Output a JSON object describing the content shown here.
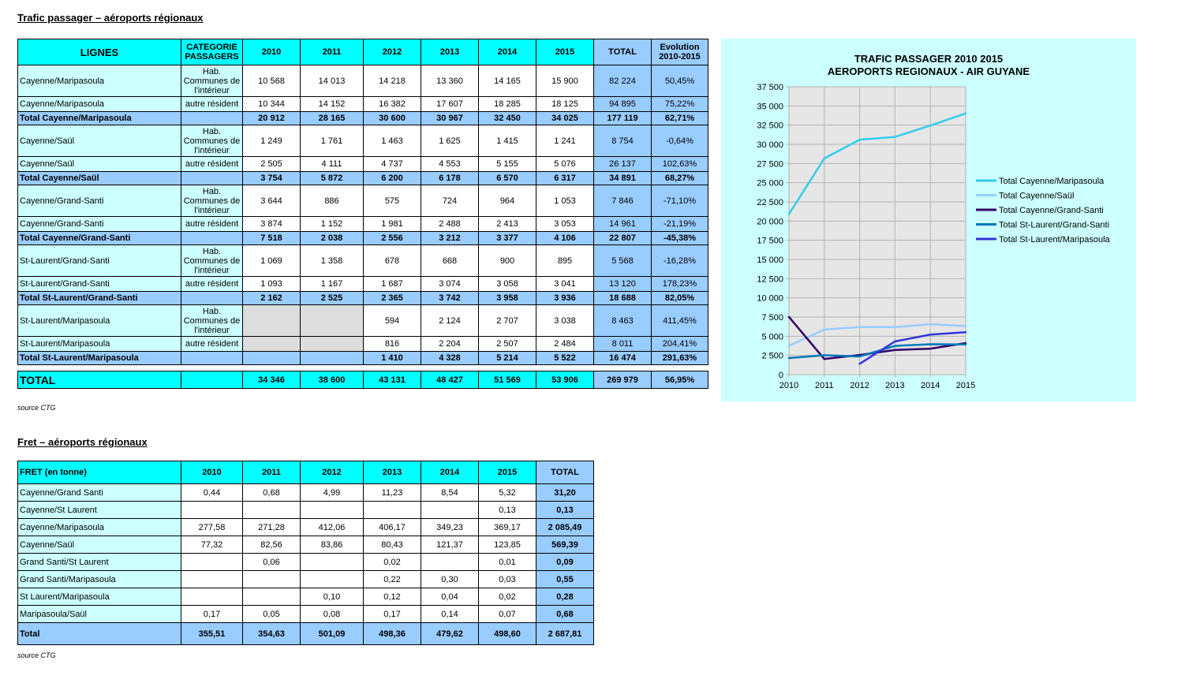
{
  "passenger": {
    "heading": "Trafic passager – aéroports régionaux",
    "headers": [
      "LIGNES",
      "CATEGORIE PASSAGERS",
      "2010",
      "2011",
      "2012",
      "2013",
      "2014",
      "2015",
      "TOTAL",
      "Evolution 2010-2015"
    ],
    "rows": [
      {
        "kind": "data",
        "cells": [
          "Cayenne/Maripasoula",
          "Hab. Communes de l'intérieur",
          "10 568",
          "14 013",
          "14 218",
          "13 360",
          "14 165",
          "15 900",
          "82 224",
          "50,45%"
        ]
      },
      {
        "kind": "data",
        "cells": [
          "Cayenne/Maripasoula",
          "autre résident",
          "10 344",
          "14 152",
          "16 382",
          "17 607",
          "18 285",
          "18 125",
          "94 895",
          "75,22%"
        ]
      },
      {
        "kind": "total",
        "cells": [
          "Total Cayenne/Maripasoula",
          "",
          "20 912",
          "28 165",
          "30 600",
          "30 967",
          "32 450",
          "34 025",
          "177 119",
          "62,71%"
        ]
      },
      {
        "kind": "data",
        "cells": [
          "Cayenne/Saül",
          "Hab. Communes de l'intérieur",
          "1 249",
          "1 761",
          "1 463",
          "1 625",
          "1 415",
          "1 241",
          "8 754",
          "-0,64%"
        ]
      },
      {
        "kind": "data",
        "cells": [
          "Cayenne/Saül",
          "autre résident",
          "2 505",
          "4 111",
          "4 737",
          "4 553",
          "5 155",
          "5 076",
          "26 137",
          "102,63%"
        ]
      },
      {
        "kind": "total",
        "cells": [
          "Total Cayenne/Saül",
          "",
          "3 754",
          "5 872",
          "6 200",
          "6 178",
          "6 570",
          "6 317",
          "34 891",
          "68,27%"
        ]
      },
      {
        "kind": "data",
        "cells": [
          "Cayenne/Grand-Santi",
          "Hab. Communes de l'intérieur",
          "3 644",
          "886",
          "575",
          "724",
          "964",
          "1 053",
          "7 846",
          "-71,10%"
        ]
      },
      {
        "kind": "data",
        "cells": [
          "Cayenne/Grand-Santi",
          "autre résident",
          "3 874",
          "1 152",
          "1 981",
          "2 488",
          "2 413",
          "3 053",
          "14 961",
          "-21,19%"
        ]
      },
      {
        "kind": "total",
        "cells": [
          "Total Cayenne/Grand-Santi",
          "",
          "7 518",
          "2 038",
          "2 556",
          "3 212",
          "3 377",
          "4 106",
          "22 807",
          "-45,38%"
        ]
      },
      {
        "kind": "data",
        "cells": [
          "St-Laurent/Grand-Santi",
          "Hab. Communes de l'intérieur",
          "1 069",
          "1 358",
          "678",
          "668",
          "900",
          "895",
          "5 568",
          "-16,28%"
        ]
      },
      {
        "kind": "data",
        "cells": [
          "St-Laurent/Grand-Santi",
          "autre résident",
          "1 093",
          "1 167",
          "1 687",
          "3 074",
          "3 058",
          "3 041",
          "13 120",
          "178,23%"
        ]
      },
      {
        "kind": "total",
        "cells": [
          "Total St-Laurent/Grand-Santi",
          "",
          "2 162",
          "2 525",
          "2 365",
          "3 742",
          "3 958",
          "3 936",
          "18 688",
          "82,05%"
        ]
      },
      {
        "kind": "data",
        "gray": true,
        "cells": [
          "St-Laurent/Maripasoula",
          "Hab. Communes de l'intérieur",
          "",
          "",
          "594",
          "2 124",
          "2 707",
          "3 038",
          "8 463",
          "411,45%"
        ]
      },
      {
        "kind": "data",
        "gray": true,
        "cells": [
          "St-Laurent/Maripasoula",
          "autre résident",
          "",
          "",
          "816",
          "2 204",
          "2 507",
          "2 484",
          "8 011",
          "204,41%"
        ]
      },
      {
        "kind": "total",
        "cells": [
          "Total St-Laurent/Maripasoula",
          "",
          "",
          "",
          "1 410",
          "4 328",
          "5 214",
          "5 522",
          "16 474",
          "291,63%"
        ]
      }
    ],
    "grand_total": [
      "TOTAL",
      "",
      "34 346",
      "38 600",
      "43 131",
      "48 427",
      "51 569",
      "53 906",
      "269 979",
      "56,95%"
    ],
    "source": "source CTG"
  },
  "freight": {
    "heading": "Fret – aéroports régionaux",
    "headers": [
      "FRET (en tonne)",
      "2010",
      "2011",
      "2012",
      "2013",
      "2014",
      "2015",
      "TOTAL"
    ],
    "rows": [
      [
        "Cayenne/Grand Santi",
        "0,44",
        "0,68",
        "4,99",
        "11,23",
        "8,54",
        "5,32",
        "31,20"
      ],
      [
        "Cayenne/St Laurent",
        "",
        "",
        "",
        "",
        "",
        "0,13",
        "0,13"
      ],
      [
        "Cayenne/Maripasoula",
        "277,58",
        "271,28",
        "412,06",
        "406,17",
        "349,23",
        "369,17",
        "2 085,49"
      ],
      [
        "Cayenne/Saül",
        "77,32",
        "82,56",
        "83,86",
        "80,43",
        "121,37",
        "123,85",
        "569,39"
      ],
      [
        "Grand Santi/St Laurent",
        "",
        "0,06",
        "",
        "0,02",
        "",
        "0,01",
        "0,09"
      ],
      [
        "Grand Santi/Maripasoula",
        "",
        "",
        "",
        "0,22",
        "0,30",
        "0,03",
        "0,55"
      ],
      [
        "St Laurent/Maripasoula",
        "",
        "",
        "0,10",
        "0,12",
        "0,04",
        "0,02",
        "0,28"
      ],
      [
        "Maripasoula/Saül",
        "0,17",
        "0,05",
        "0,08",
        "0,17",
        "0,14",
        "0,07",
        "0,68"
      ]
    ],
    "total": [
      "Total",
      "355,51",
      "354,63",
      "501,09",
      "498,36",
      "479,62",
      "498,60",
      "2 687,81"
    ],
    "source": "source CTG"
  },
  "chart_data": {
    "type": "line",
    "title": "TRAFIC PASSAGER 2010 2015",
    "subtitle": "AEROPORTS REGIONAUX - AIR GUYANE",
    "x": [
      2010,
      2011,
      2012,
      2013,
      2014,
      2015
    ],
    "ylim": [
      0,
      37500
    ],
    "yticks": [
      0,
      2500,
      5000,
      7500,
      10000,
      12500,
      15000,
      17500,
      20000,
      22500,
      25000,
      27500,
      30000,
      32500,
      35000,
      37500
    ],
    "ytick_labels": [
      "0",
      "2 500",
      "5 000",
      "7 500",
      "10 000",
      "12 500",
      "15 000",
      "17 500",
      "20 000",
      "22 500",
      "25 000",
      "27 500",
      "30 000",
      "32 500",
      "35 000",
      "37 500"
    ],
    "legend_position": "right",
    "series": [
      {
        "name": "Total Cayenne/Maripasoula",
        "color": "#33ccee",
        "values": [
          20912,
          28165,
          30600,
          30967,
          32450,
          34025
        ]
      },
      {
        "name": "Total Cayenne/Saül",
        "color": "#99ccff",
        "values": [
          3754,
          5872,
          6200,
          6178,
          6570,
          6317
        ]
      },
      {
        "name": "Total Cayenne/Grand-Santi",
        "color": "#330066",
        "values": [
          7518,
          2038,
          2556,
          3212,
          3377,
          4106
        ]
      },
      {
        "name": "Total St-Laurent/Grand-Santi",
        "color": "#0077bb",
        "values": [
          2162,
          2525,
          2365,
          3742,
          3958,
          3936
        ]
      },
      {
        "name": "Total St-Laurent/Maripasoula",
        "color": "#3333dd",
        "values": [
          null,
          null,
          1410,
          4328,
          5214,
          5522
        ]
      }
    ],
    "plot_background": "#e6e6e6",
    "background": "#ccffff"
  }
}
